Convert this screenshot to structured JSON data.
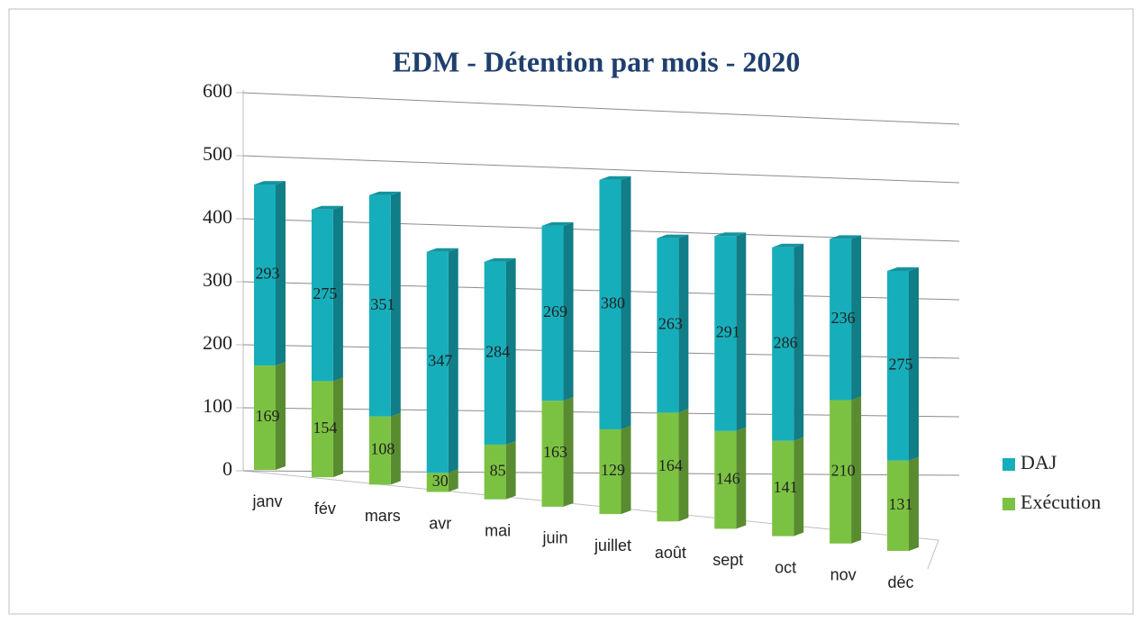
{
  "chart_data": {
    "type": "bar3d_stacked",
    "title": "EDM - Détention par mois - 2020",
    "categories": [
      "janv",
      "fév",
      "mars",
      "avr",
      "mai",
      "juin",
      "juillet",
      "août",
      "sept",
      "oct",
      "nov",
      "déc"
    ],
    "series": [
      {
        "name": "Exécution",
        "color": "#7cc242",
        "values": [
          169,
          154,
          108,
          30,
          85,
          163,
          129,
          164,
          146,
          141,
          210,
          131
        ]
      },
      {
        "name": "DAJ",
        "color": "#17aebb",
        "values": [
          293,
          275,
          351,
          347,
          284,
          269,
          380,
          263,
          291,
          286,
          236,
          275
        ]
      }
    ],
    "ylim": [
      0,
      600
    ],
    "yticks": [
      0,
      100,
      200,
      300,
      400,
      500,
      600
    ],
    "grid": true,
    "legend": "right"
  }
}
